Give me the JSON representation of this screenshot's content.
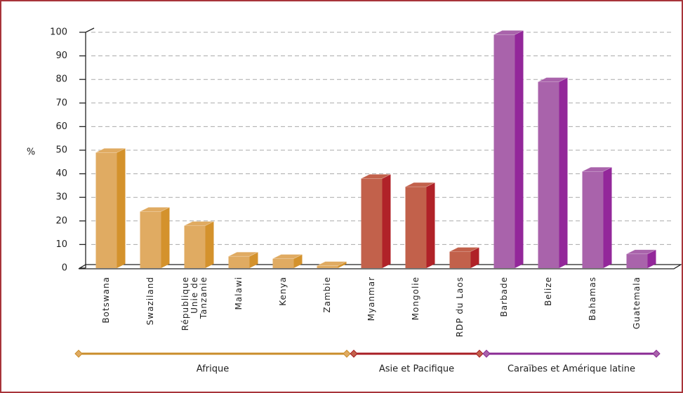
{
  "chart_data": {
    "type": "bar3d",
    "y_label": "%",
    "categories": [
      "Botswana",
      "Swaziland",
      "République\nUnie de\nTanzanie",
      "Malawi",
      "Kenya",
      "Zambie",
      "Myanmar",
      "Mongolie",
      "RDP du Laos",
      "Barbade",
      "Belize",
      "Bahamas",
      "Guatemala"
    ],
    "series": [
      {
        "name": "Afrique",
        "color": "#e0ab62",
        "side": "#d4922c",
        "line": "#c98d2a",
        "values": [
          49,
          24,
          18,
          5,
          4,
          1,
          null,
          null,
          null,
          null,
          null,
          null,
          null
        ]
      },
      {
        "name": "Asie et Pacifique",
        "color": "#c2614b",
        "side": "#b02228",
        "line": "#a81e24",
        "values": [
          null,
          null,
          null,
          null,
          null,
          null,
          38,
          34.5,
          7,
          null,
          null,
          null,
          null
        ]
      },
      {
        "name": "Caraïbes et Amérique latine",
        "color": "#a963ab",
        "side": "#93279a",
        "line": "#8a2a94",
        "values": [
          null,
          null,
          null,
          null,
          null,
          null,
          null,
          null,
          null,
          99,
          79,
          41,
          6
        ]
      }
    ],
    "ylim": [
      0,
      100
    ],
    "yticks": [
      0,
      10,
      20,
      30,
      40,
      50,
      60,
      70,
      80,
      90,
      100
    ],
    "grid": true
  }
}
